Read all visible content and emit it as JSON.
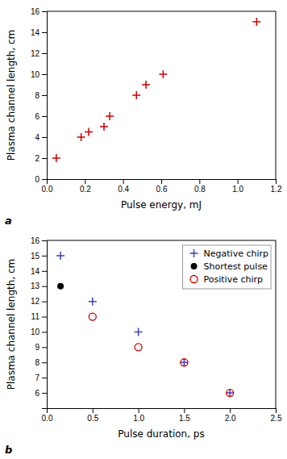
{
  "chart_data": [
    {
      "type": "scatter",
      "x": [
        0.05,
        0.18,
        0.22,
        0.3,
        0.33,
        0.47,
        0.52,
        0.61,
        1.1
      ],
      "values": [
        2.0,
        4.0,
        4.5,
        5.0,
        6.0,
        8.0,
        9.0,
        10.0,
        15.0
      ],
      "color": "#cc0000",
      "marker": "plus",
      "x_label": "Pulse energy, mJ",
      "y_label": "Plasma channel length, cm",
      "xlim": [
        0,
        1.2
      ],
      "ylim": [
        0,
        16
      ],
      "xticks": [
        {
          "value": 0,
          "label": "0.0"
        },
        0.2,
        0.4,
        0.6,
        0.8,
        {
          "value": 1.0,
          "label": "1.0"
        },
        1.2
      ],
      "yticks": [
        0,
        2,
        4,
        6,
        8,
        10,
        12,
        14,
        16
      ],
      "annotations": [
        "a"
      ]
    },
    {
      "type": "scatter",
      "series": [
        {
          "name": "Negative chirp",
          "color": "#4040bb",
          "marker": "plus",
          "x": [
            0.15,
            0.5,
            1.0,
            1.5,
            2.0
          ],
          "values": [
            15.0,
            12.0,
            10.0,
            8.0,
            6.0
          ]
        },
        {
          "name": "Shortest pulse",
          "color": "#000000",
          "marker": "circle",
          "x": [
            0.15
          ],
          "values": [
            13.0
          ]
        },
        {
          "name": "Positive chirp",
          "color": "#cc0000",
          "marker": "open-circle",
          "x": [
            0.5,
            1.0,
            1.5,
            2.0
          ],
          "values": [
            11.0,
            9.0,
            8.0,
            6.0
          ]
        }
      ],
      "x_label": "Pulse duration, ps",
      "y_label": "Plasma channel length, cm",
      "xlim": [
        0,
        2.5
      ],
      "ylim": [
        5,
        16
      ],
      "xticks": [
        {
          "value": 0.0,
          "label": "0.0"
        },
        0.5,
        {
          "value": 1.0,
          "label": "1.0"
        },
        1.5,
        {
          "value": 2.0,
          "label": "2.0"
        },
        2.5
      ],
      "yticks": [
        6,
        7,
        8,
        9,
        10,
        11,
        12,
        13,
        14,
        15,
        16
      ],
      "legend": "upper-right",
      "annotations": [
        "b"
      ]
    }
  ]
}
